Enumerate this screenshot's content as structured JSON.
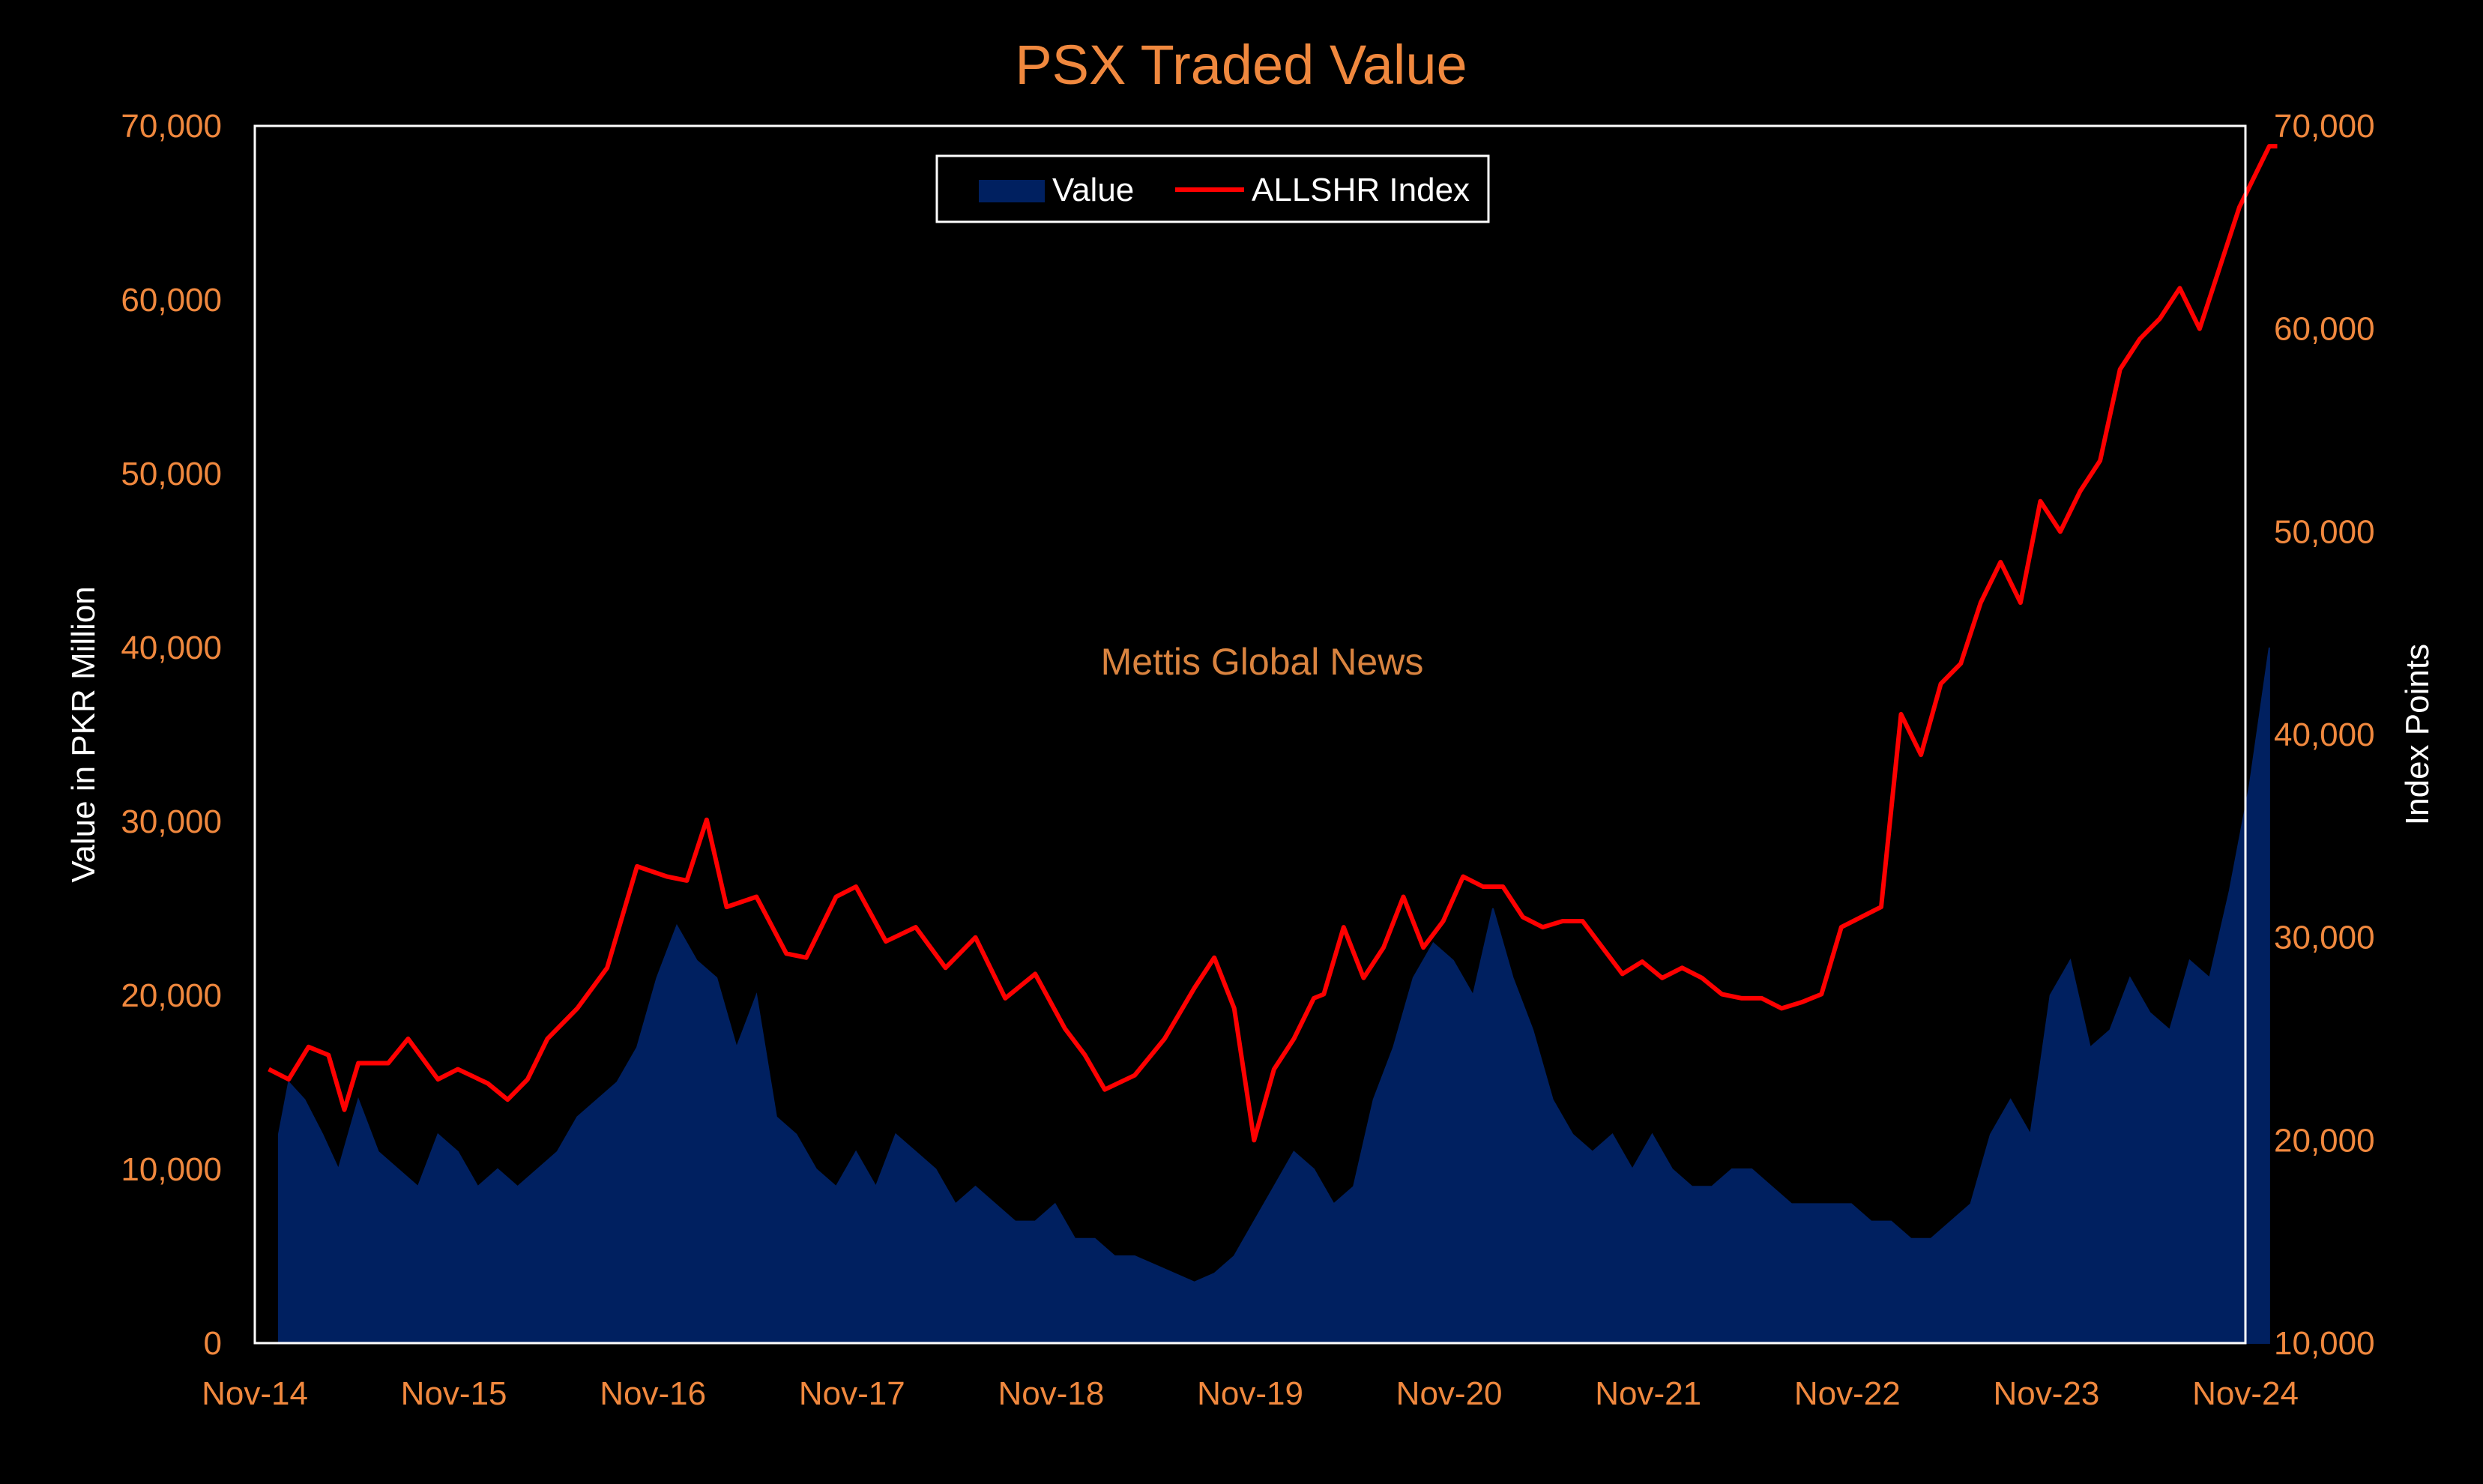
{
  "chart_data": {
    "type": "bar+line",
    "title": "PSX Traded Value",
    "ylabel_left": "Value in PKR Million",
    "ylabel_right": "Index Points",
    "ylim_left": [
      0,
      70000
    ],
    "ylim_right": [
      10000,
      70000
    ],
    "yticks_left": [
      "0",
      "10,000",
      "20,000",
      "30,000",
      "40,000",
      "50,000",
      "60,000",
      "70,000"
    ],
    "yticks_right": [
      "10,000",
      "20,000",
      "30,000",
      "40,000",
      "50,000",
      "60,000",
      "70,000"
    ],
    "x_ticks": [
      "Nov-14",
      "Nov-15",
      "Nov-16",
      "Nov-17",
      "Nov-18",
      "Nov-19",
      "Nov-20",
      "Nov-21",
      "Nov-22",
      "Nov-23",
      "Nov-24"
    ],
    "legend": {
      "placement": "top-center",
      "entries": [
        "Value",
        "ALLSHR Index"
      ]
    },
    "annotation": "Mettis Global News",
    "colors": {
      "value": "#002060",
      "index": "#ff0000",
      "text": "#f0883e",
      "background": "#000000"
    },
    "series": [
      {
        "name": "Value",
        "type": "area",
        "x": [
          2014.95,
          2015.0,
          2015.08,
          2015.17,
          2015.25,
          2015.35,
          2015.45,
          2015.55,
          2015.65,
          2015.75,
          2015.85,
          2015.95,
          2016.05,
          2016.15,
          2016.25,
          2016.35,
          2016.45,
          2016.55,
          2016.65,
          2016.75,
          2016.85,
          2016.95,
          2017.05,
          2017.15,
          2017.25,
          2017.35,
          2017.45,
          2017.55,
          2017.65,
          2017.75,
          2017.85,
          2017.95,
          2018.05,
          2018.15,
          2018.25,
          2018.35,
          2018.45,
          2018.55,
          2018.65,
          2018.75,
          2018.85,
          2018.95,
          2019.05,
          2019.15,
          2019.25,
          2019.35,
          2019.45,
          2019.55,
          2019.65,
          2019.75,
          2019.85,
          2019.95,
          2020.05,
          2020.15,
          2020.25,
          2020.35,
          2020.45,
          2020.55,
          2020.65,
          2020.75,
          2020.85,
          2020.95,
          2021.05,
          2021.15,
          2021.25,
          2021.35,
          2021.45,
          2021.55,
          2021.65,
          2021.75,
          2021.85,
          2021.95,
          2022.05,
          2022.15,
          2022.25,
          2022.35,
          2022.45,
          2022.55,
          2022.65,
          2022.75,
          2022.85,
          2022.95,
          2023.05,
          2023.15,
          2023.25,
          2023.35,
          2023.45,
          2023.55,
          2023.65,
          2023.75,
          2023.85,
          2023.95,
          2024.05,
          2024.15,
          2024.25,
          2024.35,
          2024.45,
          2024.55,
          2024.65,
          2024.75,
          2024.85,
          2024.95
        ],
        "values": [
          12000,
          15000,
          14000,
          12000,
          10000,
          14000,
          11000,
          10000,
          9000,
          12000,
          11000,
          9000,
          10000,
          9000,
          10000,
          11000,
          13000,
          14000,
          15000,
          17000,
          21000,
          24000,
          22000,
          21000,
          17000,
          20000,
          13000,
          12000,
          10000,
          9000,
          11000,
          9000,
          12000,
          11000,
          10000,
          8000,
          9000,
          8000,
          7000,
          7000,
          8000,
          6000,
          6000,
          5000,
          5000,
          4500,
          4000,
          3500,
          4000,
          5000,
          7000,
          9000,
          11000,
          10000,
          8000,
          9000,
          14000,
          17000,
          21000,
          23000,
          22000,
          20000,
          25000,
          21000,
          18000,
          14000,
          12000,
          11000,
          12000,
          10000,
          12000,
          10000,
          9000,
          9000,
          10000,
          10000,
          9000,
          8000,
          8000,
          8000,
          8000,
          7000,
          7000,
          6000,
          6000,
          7000,
          8000,
          12000,
          14000,
          12000,
          20000,
          22000,
          17000,
          18000,
          21000,
          19000,
          18000,
          22000,
          21000,
          26000,
          32000,
          40000
        ]
      },
      {
        "name": "ALLSHR Index",
        "type": "line",
        "x": [
          2014.9,
          2015.0,
          2015.1,
          2015.2,
          2015.28,
          2015.35,
          2015.5,
          2015.6,
          2015.75,
          2015.85,
          2016.0,
          2016.1,
          2016.2,
          2016.3,
          2016.45,
          2016.6,
          2016.75,
          2016.9,
          2017.0,
          2017.1,
          2017.2,
          2017.35,
          2017.5,
          2017.6,
          2017.75,
          2017.85,
          2018.0,
          2018.15,
          2018.3,
          2018.45,
          2018.6,
          2018.75,
          2018.9,
          2019.0,
          2019.1,
          2019.25,
          2019.4,
          2019.55,
          2019.65,
          2019.75,
          2019.85,
          2019.95,
          2020.05,
          2020.15,
          2020.2,
          2020.3,
          2020.4,
          2020.5,
          2020.6,
          2020.7,
          2020.8,
          2020.9,
          2021.0,
          2021.1,
          2021.2,
          2021.3,
          2021.4,
          2021.5,
          2021.6,
          2021.7,
          2021.8,
          2021.9,
          2022.0,
          2022.1,
          2022.2,
          2022.3,
          2022.4,
          2022.5,
          2022.6,
          2022.7,
          2022.8,
          2022.9,
          2023.0,
          2023.1,
          2023.2,
          2023.3,
          2023.4,
          2023.5,
          2023.6,
          2023.7,
          2023.8,
          2023.9,
          2024.0,
          2024.1,
          2024.2,
          2024.3,
          2024.4,
          2024.5,
          2024.6,
          2024.7,
          2024.8,
          2024.85,
          2024.9,
          2024.95,
          2024.99
        ],
        "values": [
          23500,
          23000,
          24600,
          24200,
          21500,
          23800,
          23800,
          25000,
          23000,
          23500,
          22800,
          22000,
          23000,
          25000,
          26500,
          28500,
          33500,
          33000,
          32800,
          35800,
          31500,
          32000,
          29200,
          29000,
          32000,
          32500,
          29800,
          30500,
          28500,
          30000,
          27000,
          28200,
          25500,
          24200,
          22500,
          23200,
          25000,
          27500,
          29000,
          26500,
          20000,
          23500,
          25000,
          27000,
          27200,
          30500,
          28000,
          29500,
          32000,
          29500,
          30800,
          33000,
          32500,
          32500,
          31000,
          30500,
          30800,
          30800,
          29500,
          28200,
          28800,
          28000,
          28500,
          28000,
          27200,
          27000,
          27000,
          26500,
          26800,
          27200,
          30500,
          31000,
          31500,
          41000,
          39000,
          42500,
          43500,
          46500,
          48500,
          46500,
          51500,
          50000,
          52000,
          53500,
          58000,
          59500,
          60500,
          62000,
          60000,
          63000,
          66000,
          67000,
          68000,
          69000,
          69000
        ]
      }
    ]
  }
}
